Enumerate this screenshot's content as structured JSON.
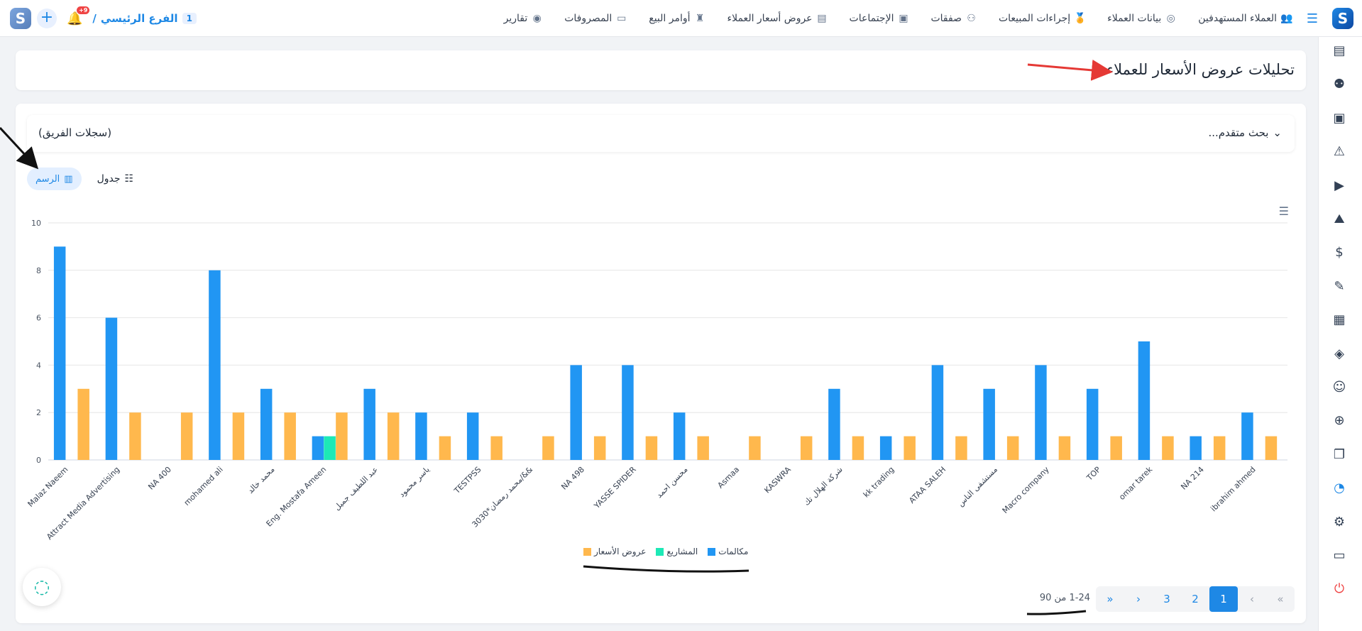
{
  "header": {
    "branch_label": "الفرع الرئيسي",
    "branch_number": "1",
    "notification_count": "+9",
    "nav_items": [
      {
        "label": "العملاء المستهدفين",
        "icon": "target-customers-icon",
        "glyph": "👥"
      },
      {
        "label": "بيانات العملاء",
        "icon": "customer-data-icon",
        "glyph": "◎"
      },
      {
        "label": "إجراءات المبيعات",
        "icon": "sales-actions-icon",
        "glyph": "🏅"
      },
      {
        "label": "صفقات",
        "icon": "deals-icon",
        "glyph": "⚇"
      },
      {
        "label": "الإجتماعات",
        "icon": "meetings-icon",
        "glyph": "▣"
      },
      {
        "label": "عروض أسعار العملاء",
        "icon": "quotes-icon",
        "glyph": "▤"
      },
      {
        "label": "أوامر البيع",
        "icon": "sales-orders-icon",
        "glyph": "♜"
      },
      {
        "label": "المصروفات",
        "icon": "expenses-icon",
        "glyph": "▭"
      },
      {
        "label": "تقارير",
        "icon": "reports-icon",
        "glyph": "◉"
      }
    ]
  },
  "page": {
    "title": "تحليلات عروض الأسعار للعملاء"
  },
  "filters": {
    "advanced_search": "بحث متقدم...",
    "team_records": "(سجلات الفريق)"
  },
  "view_toggle": {
    "chart_label": "الرسم",
    "table_label": "جدول"
  },
  "colors": {
    "calls": "#2196f3",
    "projects": "#1de9b6",
    "quotes": "#ffb84d",
    "annotation_red": "#e53935",
    "annotation_black": "#111111"
  },
  "chart_data": {
    "type": "bar",
    "title": "",
    "xlabel": "",
    "ylabel": "",
    "ylim": [
      0,
      10
    ],
    "yticks": [
      0,
      2,
      4,
      6,
      8,
      10
    ],
    "grid": true,
    "legend_position": "bottom",
    "categories": [
      "Malaz Naeem",
      "Attract Media Advertising",
      "NA 400",
      "mohamed ali",
      "محمد خالد",
      "Eng. Mostafa Ameen",
      "عبد اللطيف جميل",
      "ياسر محمود",
      "TESTPSS",
      "3030*محمد رمضان/&&",
      "NA 498",
      "YASSE SPIDER",
      "محسن احمد",
      "Asmaa",
      "KASWRA",
      "شركة الهلال تك",
      "kk trading",
      "ATAA SALEH",
      "مستشفى الناس",
      "Macro company",
      "TOP",
      "omar tarek",
      "NA 214",
      "ibrahim ahmed"
    ],
    "series": [
      {
        "name": "مكالمات",
        "color": "#2196f3",
        "values": [
          9,
          6,
          0,
          8,
          3,
          1,
          3,
          2,
          2,
          0,
          4,
          4,
          2,
          0,
          0,
          3,
          1,
          4,
          3,
          4,
          3,
          5,
          1,
          2
        ]
      },
      {
        "name": "المشاريع",
        "color": "#1de9b6",
        "values": [
          0,
          0,
          0,
          0,
          0,
          1,
          0,
          0,
          0,
          0,
          0,
          0,
          0,
          0,
          0,
          0,
          0,
          0,
          0,
          0,
          0,
          0,
          0,
          0
        ]
      },
      {
        "name": "عروض الأسعار",
        "color": "#ffb84d",
        "values": [
          3,
          2,
          2,
          2,
          2,
          2,
          2,
          1,
          1,
          1,
          1,
          1,
          1,
          1,
          1,
          1,
          1,
          1,
          1,
          1,
          1,
          1,
          1,
          1
        ]
      }
    ]
  },
  "pagination": {
    "pages": [
      "1",
      "2",
      "3"
    ],
    "current": "1",
    "info": "1-24 من 90",
    "first_glyph": "«",
    "prev_glyph": "‹",
    "next_glyph": "›",
    "last_glyph": "»"
  },
  "sidebar": {
    "icons": [
      "tasks-icon",
      "users-group-icon",
      "money-icon",
      "warning-icon",
      "video-icon",
      "mountain-icon",
      "invoice-icon",
      "signature-icon",
      "document-icon",
      "products-icon",
      "customer-icon",
      "add-document-icon",
      "files-icon",
      "analytics-icon",
      "settings-icon",
      "window-icon",
      "power-icon"
    ]
  }
}
